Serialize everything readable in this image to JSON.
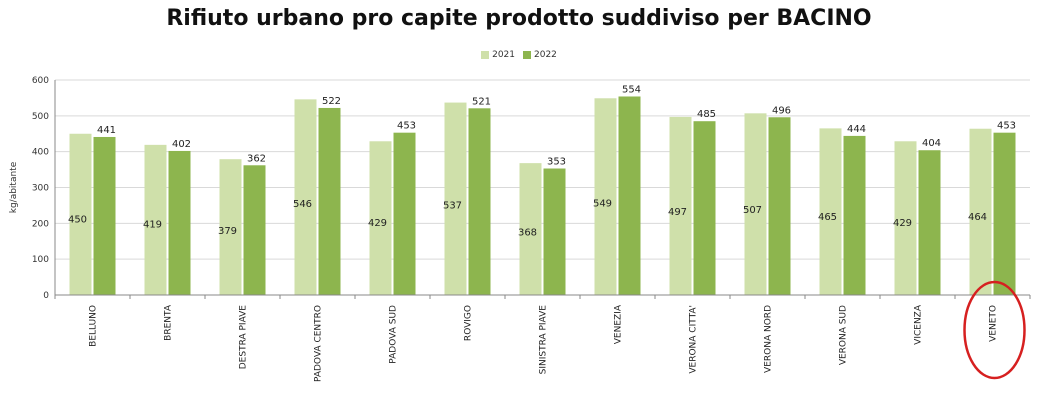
{
  "chart_data": {
    "type": "bar",
    "title": "Rifiuto urbano pro capite prodotto suddiviso per BACINO",
    "ylabel": "kg/abitante",
    "xlabel": "",
    "ylim": [
      0,
      600
    ],
    "yticks": [
      "0",
      "100",
      "200",
      "300",
      "400",
      "500",
      "600"
    ],
    "grid": true,
    "legend_position": "top",
    "categories": [
      "BELLUNO",
      "BRENTA",
      "DESTRA PIAVE",
      "PADOVA CENTRO",
      "PADOVA SUD",
      "ROVIGO",
      "SINISTRA PIAVE",
      "VENEZIA",
      "VERONA CITTA'",
      "VERONA NORD",
      "VERONA SUD",
      "VICENZA",
      "VENETO"
    ],
    "series": [
      {
        "name": "2021",
        "color": "#cfe0aa",
        "values": [
          450,
          419,
          379,
          546,
          429,
          537,
          368,
          549,
          497,
          507,
          465,
          429,
          464
        ]
      },
      {
        "name": "2022",
        "color": "#8db54e",
        "values": [
          441,
          402,
          362,
          522,
          453,
          521,
          353,
          554,
          485,
          496,
          444,
          404,
          453
        ]
      }
    ],
    "annotation": {
      "type": "ellipse",
      "target": "VENETO",
      "color": "#d62020"
    }
  }
}
